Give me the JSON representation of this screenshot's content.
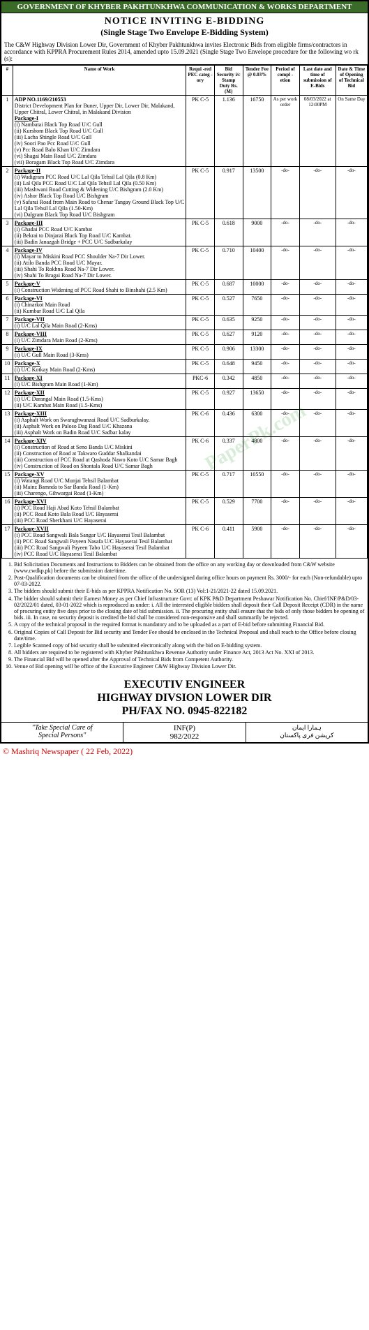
{
  "masthead": "GOVERNMENT OF KHYBER PAKHTUNKHWA COMMUNICATION & WORKS DEPARTMENT",
  "title": "NOTICE INVITING E-BIDDING",
  "subtitle": "(Single Stage Two Envelope E-Bidding System)",
  "intro": "The C&W Highway Division Lower Dir, Government of Khyber Pakhtunkhwa invites Electronic Bids from eligible firms/contractors in accordance with KPPRA Procurement Rules 2014, amended upto 15.09.2021 (Single Stage Two Envelope procedure for the following wo rk (s):",
  "columns": [
    "#",
    "Name of Work",
    "Requi -red PEC categ -ory",
    "Bid Security i/c Stamp Duty Rs. (M)",
    "Tender Fee @ 0.03%",
    "Period of compl -etion",
    "Last date and time of submission of E-Bids",
    "Date & Time of Opening of Technical Bid"
  ],
  "adp_header": "ADP NO.1169/210553",
  "adp_desc": "District Development Plan for Buner, Upper Dir, Lower Dir, Malakand, Upper Chitral, Lower Chitral, in Malakand Division",
  "rows": [
    {
      "sn": "1",
      "pkg": "Package-I",
      "items": [
        "(i) Nambatai Black Top Road U/C Gull",
        "(ii) Kurshom Black Top Road U/C Gull",
        "(iii) Lacha Shingle Road U/C Gull",
        "(iv) Soori Pao Pcc Road U/C Gull",
        "(v) Pcc Road Balo Khan U/C Zimdara",
        "(vi) Shagai Main Road U/C Zimdara",
        "(vii) Boragam Black Top Road U/C Zimdara"
      ],
      "cat": "PK C-5",
      "sec": "1.136",
      "fee": "16750",
      "per": "As per work order",
      "date": "08/03/2022 at 12:00PM",
      "open": "On Same Day"
    },
    {
      "sn": "2",
      "pkg": "Package-II",
      "items": [
        "(i) Wadigram PCC Road U/C Lal Qila Tehsil Lal Qila (0.8 Km)",
        "(ii) Lal Qila PCC Road U/C Lal Qila Tehsil Lal Qila (0.50 Km)",
        "(iii) Mashwani Road Cutting & Widening U/C Bishgram (2.0 Km)",
        "(iv) Ashor Black Top Road U/C Bishgram",
        "(v) Safarai Road from Main Road to Chenar Tangay Ground Black Top U/C Lal Qila Tehsil Lal Qila (1.50-Km)",
        "(vi) Dalgram Black Top Road U/C Bishgram"
      ],
      "cat": "PK C-5",
      "sec": "0.917",
      "fee": "13500",
      "per": "-do-",
      "date": "-do-",
      "open": "-do-"
    },
    {
      "sn": "3",
      "pkg": "Package-III",
      "items": [
        "(i) Ghadai PCC Road U/C Kambat",
        "(ii) Bekrai to Dinjarai Black Top Road U/C Kambat.",
        "(iii) Badin Janazgah Bridge + PCC U/C Sadbarkalay"
      ],
      "cat": "PK C-5",
      "sec": "0.618",
      "fee": "9000",
      "per": "-do-",
      "date": "-do-",
      "open": "-do-"
    },
    {
      "sn": "4",
      "pkg": "Package-IV",
      "items": [
        "(i) Mayar to Miskini Road PCC Shoulder Na-7 Dir Lower.",
        "(ii) Atilo Banda PCC Road U/C Mayar.",
        "(iii) Shahi To Rokhna Road Na-7 Dir Lower.",
        "(iv) Shahi To Bragai Road Na-7 Dir Lower."
      ],
      "cat": "PK C-5",
      "sec": "0.710",
      "fee": "10400",
      "per": "-do-",
      "date": "-do-",
      "open": "-do-"
    },
    {
      "sn": "5",
      "pkg": "Package-V",
      "items": [
        "(i) Construction Widening of PCC Road Shahi to Binshahi (2.5 Km)"
      ],
      "cat": "PK C-5",
      "sec": "0.687",
      "fee": "10000",
      "per": "-do-",
      "date": "-do-",
      "open": "-do-"
    },
    {
      "sn": "6",
      "pkg": "Package-VI",
      "items": [
        "(i) Chinarkot Main Road",
        "(ii) Kumbar Road U/C Lal Qila"
      ],
      "cat": "PK C-5",
      "sec": "0.527",
      "fee": "7650",
      "per": "-do-",
      "date": "-do-",
      "open": "-do-"
    },
    {
      "sn": "7",
      "pkg": "Package-VII",
      "items": [
        "(i) U/C Lal Qila Main Road (2-Kms)"
      ],
      "cat": "PK C-5",
      "sec": "0.635",
      "fee": "9250",
      "per": "-do-",
      "date": "-do-",
      "open": "-do-"
    },
    {
      "sn": "8",
      "pkg": "Package-VIII",
      "items": [
        "(i) U/C Zimdara Main Road (2-Kms)"
      ],
      "cat": "PK C-5",
      "sec": "0.627",
      "fee": "9120",
      "per": "-do-",
      "date": "-do-",
      "open": "-do-"
    },
    {
      "sn": "9",
      "pkg": "Package-IX",
      "items": [
        "(i) U/C Gull Main Road (3-Kms)"
      ],
      "cat": "PK C-5",
      "sec": "0.906",
      "fee": "13300",
      "per": "-do-",
      "date": "-do-",
      "open": "-do-"
    },
    {
      "sn": "10",
      "pkg": "Package-X",
      "items": [
        "(i) U/C Kotkay Main Road (2-Kms)"
      ],
      "cat": "PK C-5",
      "sec": "0.648",
      "fee": "9450",
      "per": "-do-",
      "date": "-do-",
      "open": "-do-"
    },
    {
      "sn": "11",
      "pkg": "Package-XI",
      "items": [
        "(i) U/C Bishgram Main Road (1-Km)"
      ],
      "cat": "PKC-6",
      "sec": "0.342",
      "fee": "4850",
      "per": "-do-",
      "date": "-do-",
      "open": "-do-"
    },
    {
      "sn": "12",
      "pkg": "Package-XII",
      "items": [
        "(i) U/C Darangal Main Road (1.5-Kms)",
        "(ii) U/C Kambat Main Road (1.5-Kms)"
      ],
      "cat": "PK C-5",
      "sec": "0.927",
      "fee": "13650",
      "per": "-do-",
      "date": "-do-",
      "open": "-do-"
    },
    {
      "sn": "13",
      "pkg": "Package-XIII",
      "items": [
        "(i) Asphalt Work on Swaraghwanzai Road U/C Sadburkalay.",
        "(ii) Asphalt Work on Paloso Dag Road U/C Khazana",
        "(iii) Asphalt Work on Badin Road U/C Sadbar kalay"
      ],
      "cat": "PK C-6",
      "sec": "0.436",
      "fee": "6300",
      "per": "-do-",
      "date": "-do-",
      "open": "-do-"
    },
    {
      "sn": "14",
      "pkg": "Package-XIV",
      "items": [
        "(i) Construction of Road at Seno Banda U/C Miskini",
        "(ii) Construction of Road at Takwaro Guddar Shalkandai",
        "(iii) Construction of PCC Road at Qashoda Nawo Koto U/C Samar Bagh",
        "(iv) Construction of Road on Shontala Road U/C Samar Bagh"
      ],
      "cat": "PK C-6",
      "sec": "0.337",
      "fee": "4800",
      "per": "-do-",
      "date": "-do-",
      "open": "-do-"
    },
    {
      "sn": "15",
      "pkg": "Package-XV",
      "items": [
        "(i) Watangi Road U/C Munjai Tehsil Balambat",
        "(ii) Mainz Bamnda to Sar Banda Road (1-Km)",
        "(iii) Charengo, Gihwargai Road (1-Km)"
      ],
      "cat": "PK C-5",
      "sec": "0.717",
      "fee": "10550",
      "per": "-do-",
      "date": "-do-",
      "open": "-do-"
    },
    {
      "sn": "16",
      "pkg": "Package-XVI",
      "items": [
        "(i) PCC Road Haji Abad Koto Tehsil Balambat",
        "(ii) PCC Road Koto Bala Road U/C Hayaserai",
        "(iii) PCC Road Sherkhani U/C Hayaserai"
      ],
      "cat": "PK C-5",
      "sec": "0.529",
      "fee": "7700",
      "per": "-do-",
      "date": "-do-",
      "open": "-do-"
    },
    {
      "sn": "17",
      "pkg": "Package-XVII",
      "items": [
        "(i) PCC Road Sangwali Bala Sangar U/C Hayaserai Tesil Balambat",
        "(ii) PCC Road Sangwali Payeen Nasafa U/C Hayaserai Tesil Balambat",
        "(iii) PCC Road Sangwali Payeen Tabo U/C Hayaserai Tesil Balambat",
        "(iv) PCC Road U/C Hayaserai Tesil Balambat"
      ],
      "cat": "PK C-6",
      "sec": "0.411",
      "fee": "5900",
      "per": "-do-",
      "date": "-do-",
      "open": "-do-"
    }
  ],
  "notes": [
    "Bid Solicitation Documents and Instructions to Bidders can be obtained from the office on any working day or downloaded from C&W website (www.cwdkp.pk) before the submission date/time.",
    "Post-Qualification documents can be obtained from the office of the undersigned during office hours on payment Rs. 3000/- for each (Non-refundable) upto 07-03-2022.",
    "The bidders should submit their E-bids as per KPPRA Notification No. SOR (13) Vol:1-21/2021-22 dated 15.09.2021.",
    "The bidder should submit their Earnest Money as per Chief Infrastructure Govt: of KPK P&D Department Peshawar Notification No. Chief/INF/P&D/03-02/2022/01 dated, 03-01-2022 which is reproduced as under: i. All the interested eligible bidders shall deposit their Call Deposit Receipt (CDR) in the name of procuring entity five days prior to the closing date of bid submission. ii. The procuring entity shall ensure that the bids of only those bidders be opening of bids. iii. In case, no security deposit is credited the bid shall be considered non-responsive and shall summarily be rejected.",
    "A copy of the technical proposal in the required format is mandatory and to be uploaded as a part of E-bid before submitting Financial Bid.",
    "Original Copies of Call Deposit for Bid security and Tender Fee should be enclosed in the Technical Proposal and shall reach to the Office before closing date/time.",
    "Legible Scanned copy of bid security shall be submitted electronically along with the bid on E-bidding system.",
    "All bidders are required to be registered with Khyber Pakhtunkhwa Revenue Authority under Finance Act, 2013 Act No. XXI of 2013.",
    "The Financial Bid will be opened after the Approval of Technical Bids from Competent Authority.",
    "Venue of Bid opening will be office of the Executive Engineer C&W Highway Division Lower Dir."
  ],
  "sig1": "EXECUTIV ENGINEER",
  "sig2": "HIGHWAY DIVSION LOWER DIR",
  "sig3": "PH/FAX NO. 0945-822182",
  "foot_care1": "\"Take Special Care of",
  "foot_care2": "Special Persons\"",
  "foot_inf1": "INF(P)",
  "foot_inf2": "982/2022",
  "foot_urdu1": "ہمارا ایمان",
  "foot_urdu2": "کرپشن فری پاکستان",
  "credit": "© Mashriq Newspaper ( 22 Feb, 2022)",
  "watermark": "PaperPk.com"
}
